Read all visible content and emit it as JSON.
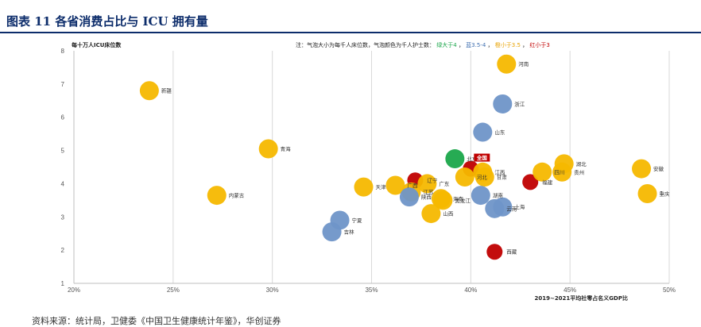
{
  "figure": {
    "title": "图表 11 各省消费占比与 ICU 拥有量",
    "source": "资料来源：统计局，卫健委《中国卫生健康统计年鉴》，华创证券"
  },
  "chart_data": {
    "type": "scatter",
    "ylabel": "每十万人ICU床位数",
    "xlabel": "2019~2021平均社零占名义GDP比",
    "note": {
      "prefix": "注：气泡大小为每千人床位数，气泡颜色为千人护士数：",
      "green": "绿大于4",
      "blue": "蓝3.5-4",
      "yellow": "橙小于3.5",
      "red": "红小于3"
    },
    "xlim": [
      0.2,
      0.5
    ],
    "ylim": [
      1,
      8
    ],
    "x_ticks": [
      "20%",
      "25%",
      "30%",
      "35%",
      "40%",
      "45%",
      "50%"
    ],
    "y_ticks": [
      "1",
      "2",
      "3",
      "4",
      "5",
      "6",
      "7",
      "8"
    ],
    "colors": {
      "yellow": "#f5b800",
      "blue": "#6f95c8",
      "green": "#1aa64a",
      "red": "#c00000"
    },
    "points": [
      {
        "name": "新疆",
        "x": 0.238,
        "y": 6.8,
        "color": "yellow"
      },
      {
        "name": "青海",
        "x": 0.298,
        "y": 5.05,
        "color": "yellow"
      },
      {
        "name": "内蒙古",
        "x": 0.272,
        "y": 3.65,
        "color": "yellow"
      },
      {
        "name": "天津",
        "x": 0.346,
        "y": 3.9,
        "color": "yellow"
      },
      {
        "name": "宁夏",
        "x": 0.334,
        "y": 2.9,
        "color": "blue"
      },
      {
        "name": "吉林",
        "x": 0.33,
        "y": 2.55,
        "color": "blue"
      },
      {
        "name": "广西",
        "x": 0.362,
        "y": 3.95,
        "color": "yellow"
      },
      {
        "name": "辽宁",
        "x": 0.372,
        "y": 4.1,
        "color": "red"
      },
      {
        "name": "广东",
        "x": 0.378,
        "y": 4.0,
        "color": "yellow"
      },
      {
        "name": "江苏",
        "x": 0.37,
        "y": 3.75,
        "color": "yellow"
      },
      {
        "name": "陕西",
        "x": 0.369,
        "y": 3.6,
        "color": "blue"
      },
      {
        "name": "海南",
        "x": 0.385,
        "y": 3.55,
        "color": "yellow"
      },
      {
        "name": "黑龙江",
        "x": 0.386,
        "y": 3.5,
        "color": "yellow"
      },
      {
        "name": "山西",
        "x": 0.38,
        "y": 3.1,
        "color": "yellow"
      },
      {
        "name": "北京",
        "x": 0.392,
        "y": 4.75,
        "color": "green"
      },
      {
        "name": "全国",
        "x": 0.4,
        "y": 4.45,
        "color": "red"
      },
      {
        "name": "江西",
        "x": 0.406,
        "y": 4.35,
        "color": "yellow"
      },
      {
        "name": "河北",
        "x": 0.397,
        "y": 4.2,
        "color": "yellow"
      },
      {
        "name": "甘肃",
        "x": 0.407,
        "y": 4.2,
        "color": "yellow"
      },
      {
        "name": "湖南",
        "x": 0.405,
        "y": 3.65,
        "color": "blue"
      },
      {
        "name": "上海",
        "x": 0.416,
        "y": 3.3,
        "color": "blue"
      },
      {
        "name": "云南",
        "x": 0.412,
        "y": 3.25,
        "color": "blue"
      },
      {
        "name": "河南",
        "x": 0.418,
        "y": 7.6,
        "color": "yellow"
      },
      {
        "name": "浙江",
        "x": 0.416,
        "y": 6.4,
        "color": "blue"
      },
      {
        "name": "山东",
        "x": 0.406,
        "y": 5.55,
        "color": "blue"
      },
      {
        "name": "福建",
        "x": 0.43,
        "y": 4.05,
        "color": "red"
      },
      {
        "name": "四川",
        "x": 0.436,
        "y": 4.35,
        "color": "yellow"
      },
      {
        "name": "湖北",
        "x": 0.447,
        "y": 4.6,
        "color": "yellow"
      },
      {
        "name": "贵州",
        "x": 0.446,
        "y": 4.35,
        "color": "yellow"
      },
      {
        "name": "安徽",
        "x": 0.486,
        "y": 4.45,
        "color": "yellow"
      },
      {
        "name": "重庆",
        "x": 0.489,
        "y": 3.7,
        "color": "yellow"
      },
      {
        "name": "西藏",
        "x": 0.412,
        "y": 1.95,
        "color": "red"
      }
    ]
  }
}
